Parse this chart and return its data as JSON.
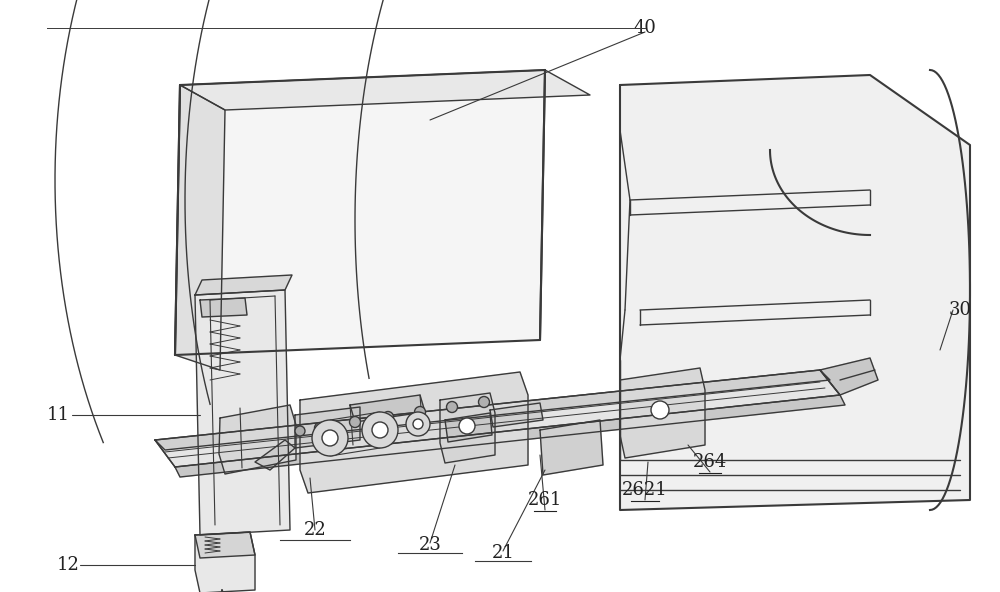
{
  "bg_color": "#ffffff",
  "lc": "#3a3a3a",
  "lw": 1.0,
  "lw2": 1.5,
  "fs": 13,
  "figsize": [
    10.0,
    5.92
  ],
  "dpi": 100
}
